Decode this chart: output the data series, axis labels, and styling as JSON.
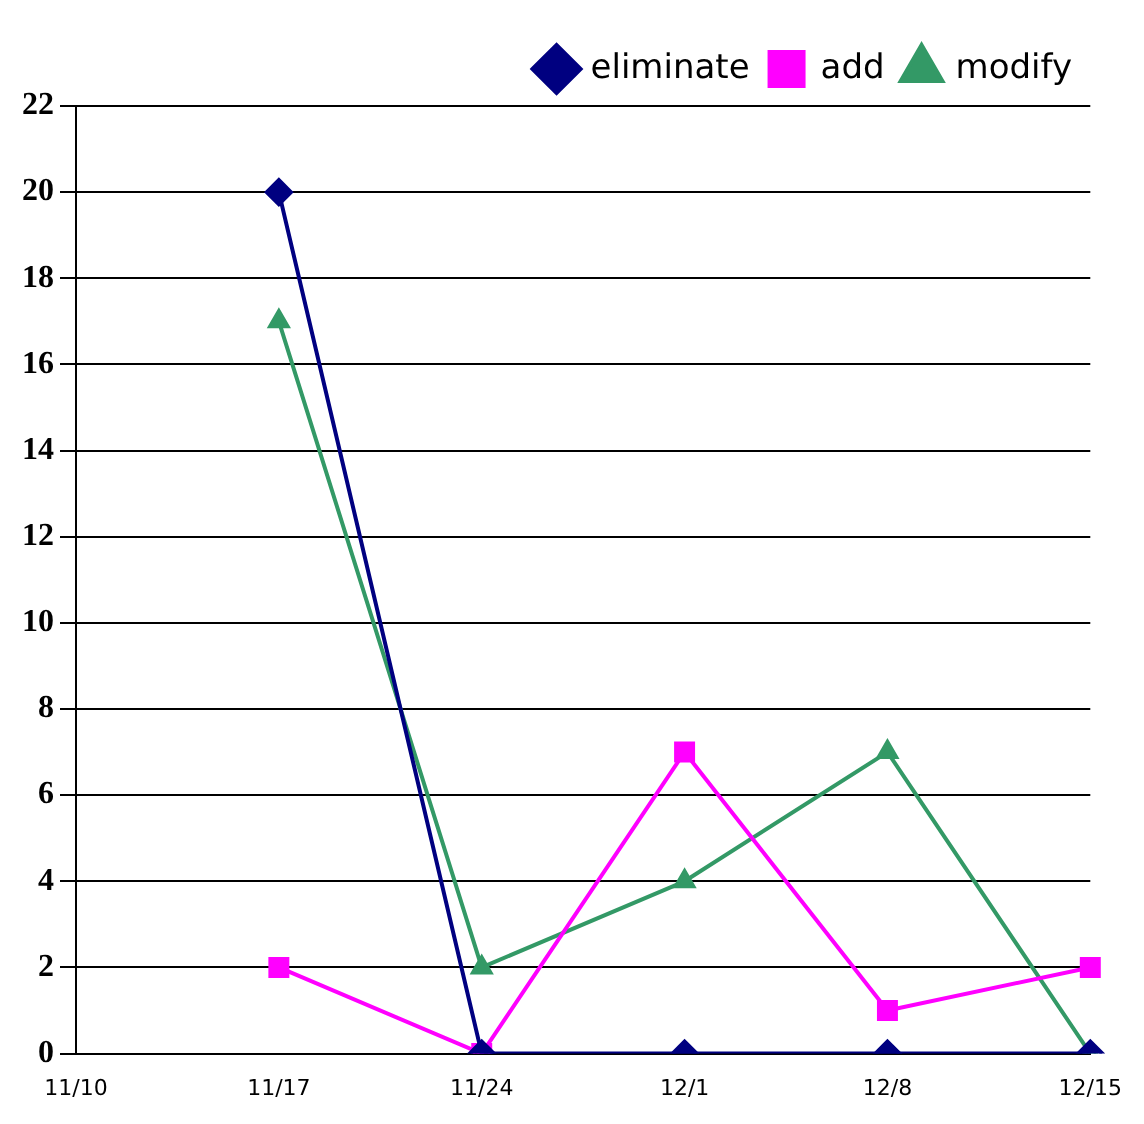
{
  "chart_data": {
    "type": "line",
    "categories": [
      "11/10",
      "11/17",
      "11/24",
      "12/1",
      "12/8",
      "12/15"
    ],
    "series": [
      {
        "name": "eliminate",
        "color": "#000080",
        "marker": "diamond",
        "values": [
          null,
          20,
          0,
          0,
          0,
          0
        ]
      },
      {
        "name": "add",
        "color": "#ff00ff",
        "marker": "square",
        "values": [
          null,
          2,
          0,
          7,
          1,
          2
        ]
      },
      {
        "name": "modify",
        "color": "#339966",
        "marker": "triangle",
        "values": [
          null,
          17,
          2,
          4,
          7,
          0
        ]
      }
    ],
    "ylim": [
      0,
      22
    ],
    "yticks": [
      0,
      2,
      4,
      6,
      8,
      10,
      12,
      14,
      16,
      18,
      20,
      22
    ],
    "grid": "y",
    "legend": "top right"
  }
}
